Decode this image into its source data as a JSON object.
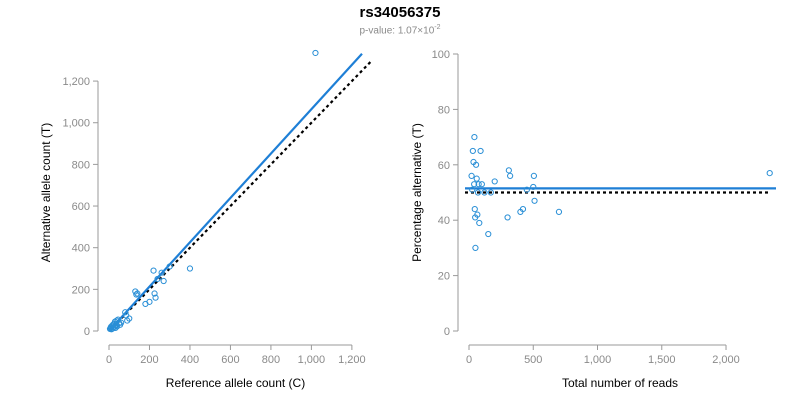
{
  "title": "rs34056375",
  "subtitle": {
    "prefix": "p-value: 1.07×10",
    "exponent": "-2"
  },
  "colors": {
    "points": "#2a8fd6",
    "fit_line": "#1e7fd6",
    "ref_line": "#000000",
    "axis": "#9a9a9a"
  },
  "chart_data": [
    {
      "type": "scatter",
      "name": "allele-count-plot",
      "xlabel": "Reference allele count (C)",
      "ylabel": "Alternative allele count (T)",
      "xlim": [
        0,
        1250
      ],
      "ylim": [
        0,
        1330
      ],
      "xticks": [
        0,
        200,
        400,
        600,
        800,
        1000,
        1200
      ],
      "xtick_labels": [
        "0",
        "200",
        "400",
        "600",
        "800",
        "1,000",
        "1,200"
      ],
      "yticks": [
        0,
        200,
        400,
        600,
        800,
        1000,
        1200
      ],
      "ytick_labels": [
        "0",
        "200",
        "400",
        "600",
        "800",
        "1,000",
        "1,200"
      ],
      "points": [
        [
          5,
          10
        ],
        [
          8,
          15
        ],
        [
          10,
          20
        ],
        [
          12,
          8
        ],
        [
          15,
          25
        ],
        [
          18,
          12
        ],
        [
          20,
          30
        ],
        [
          22,
          18
        ],
        [
          25,
          35
        ],
        [
          28,
          20
        ],
        [
          30,
          45
        ],
        [
          32,
          15
        ],
        [
          35,
          28
        ],
        [
          38,
          50
        ],
        [
          40,
          22
        ],
        [
          45,
          55
        ],
        [
          50,
          38
        ],
        [
          55,
          30
        ],
        [
          60,
          40
        ],
        [
          80,
          90
        ],
        [
          85,
          75
        ],
        [
          90,
          50
        ],
        [
          100,
          60
        ],
        [
          130,
          190
        ],
        [
          135,
          175
        ],
        [
          140,
          180
        ],
        [
          180,
          130
        ],
        [
          200,
          140
        ],
        [
          220,
          290
        ],
        [
          225,
          180
        ],
        [
          230,
          160
        ],
        [
          240,
          250
        ],
        [
          260,
          280
        ],
        [
          270,
          240
        ],
        [
          300,
          310
        ],
        [
          400,
          300
        ],
        [
          1020,
          1335
        ]
      ],
      "fit_line": {
        "slope": 1.065,
        "intercept": 0,
        "x_range": [
          0,
          1250
        ]
      },
      "ref_line": {
        "slope": 1.0,
        "intercept": 0,
        "x_range": [
          0,
          1300
        ]
      }
    },
    {
      "type": "scatter",
      "name": "percentage-plot",
      "xlabel": "Total number of reads",
      "ylabel": "Percentage alternative (T)",
      "xlim": [
        0,
        2350
      ],
      "ylim": [
        0,
        100
      ],
      "xticks": [
        0,
        500,
        1000,
        1500,
        2000
      ],
      "xtick_labels": [
        "0",
        "500",
        "1,000",
        "1,500",
        "2,000"
      ],
      "yticks": [
        0,
        20,
        40,
        60,
        80,
        100
      ],
      "ytick_labels": [
        "0",
        "20",
        "40",
        "60",
        "80",
        "100"
      ],
      "points": [
        [
          20,
          56
        ],
        [
          25,
          51
        ],
        [
          30,
          65
        ],
        [
          35,
          61
        ],
        [
          40,
          53
        ],
        [
          42,
          70
        ],
        [
          45,
          44
        ],
        [
          48,
          41
        ],
        [
          50,
          30
        ],
        [
          55,
          60
        ],
        [
          60,
          55
        ],
        [
          65,
          42
        ],
        [
          70,
          50
        ],
        [
          75,
          53
        ],
        [
          80,
          39
        ],
        [
          90,
          65
        ],
        [
          100,
          53
        ],
        [
          120,
          50
        ],
        [
          150,
          35
        ],
        [
          170,
          50
        ],
        [
          200,
          54
        ],
        [
          300,
          41
        ],
        [
          310,
          58
        ],
        [
          320,
          56
        ],
        [
          400,
          43
        ],
        [
          420,
          44
        ],
        [
          450,
          51
        ],
        [
          500,
          52
        ],
        [
          505,
          56
        ],
        [
          510,
          47
        ],
        [
          700,
          43
        ],
        [
          2340,
          57
        ]
      ],
      "fit_line": {
        "value": 51.5
      },
      "ref_line": {
        "value": 50
      }
    }
  ]
}
